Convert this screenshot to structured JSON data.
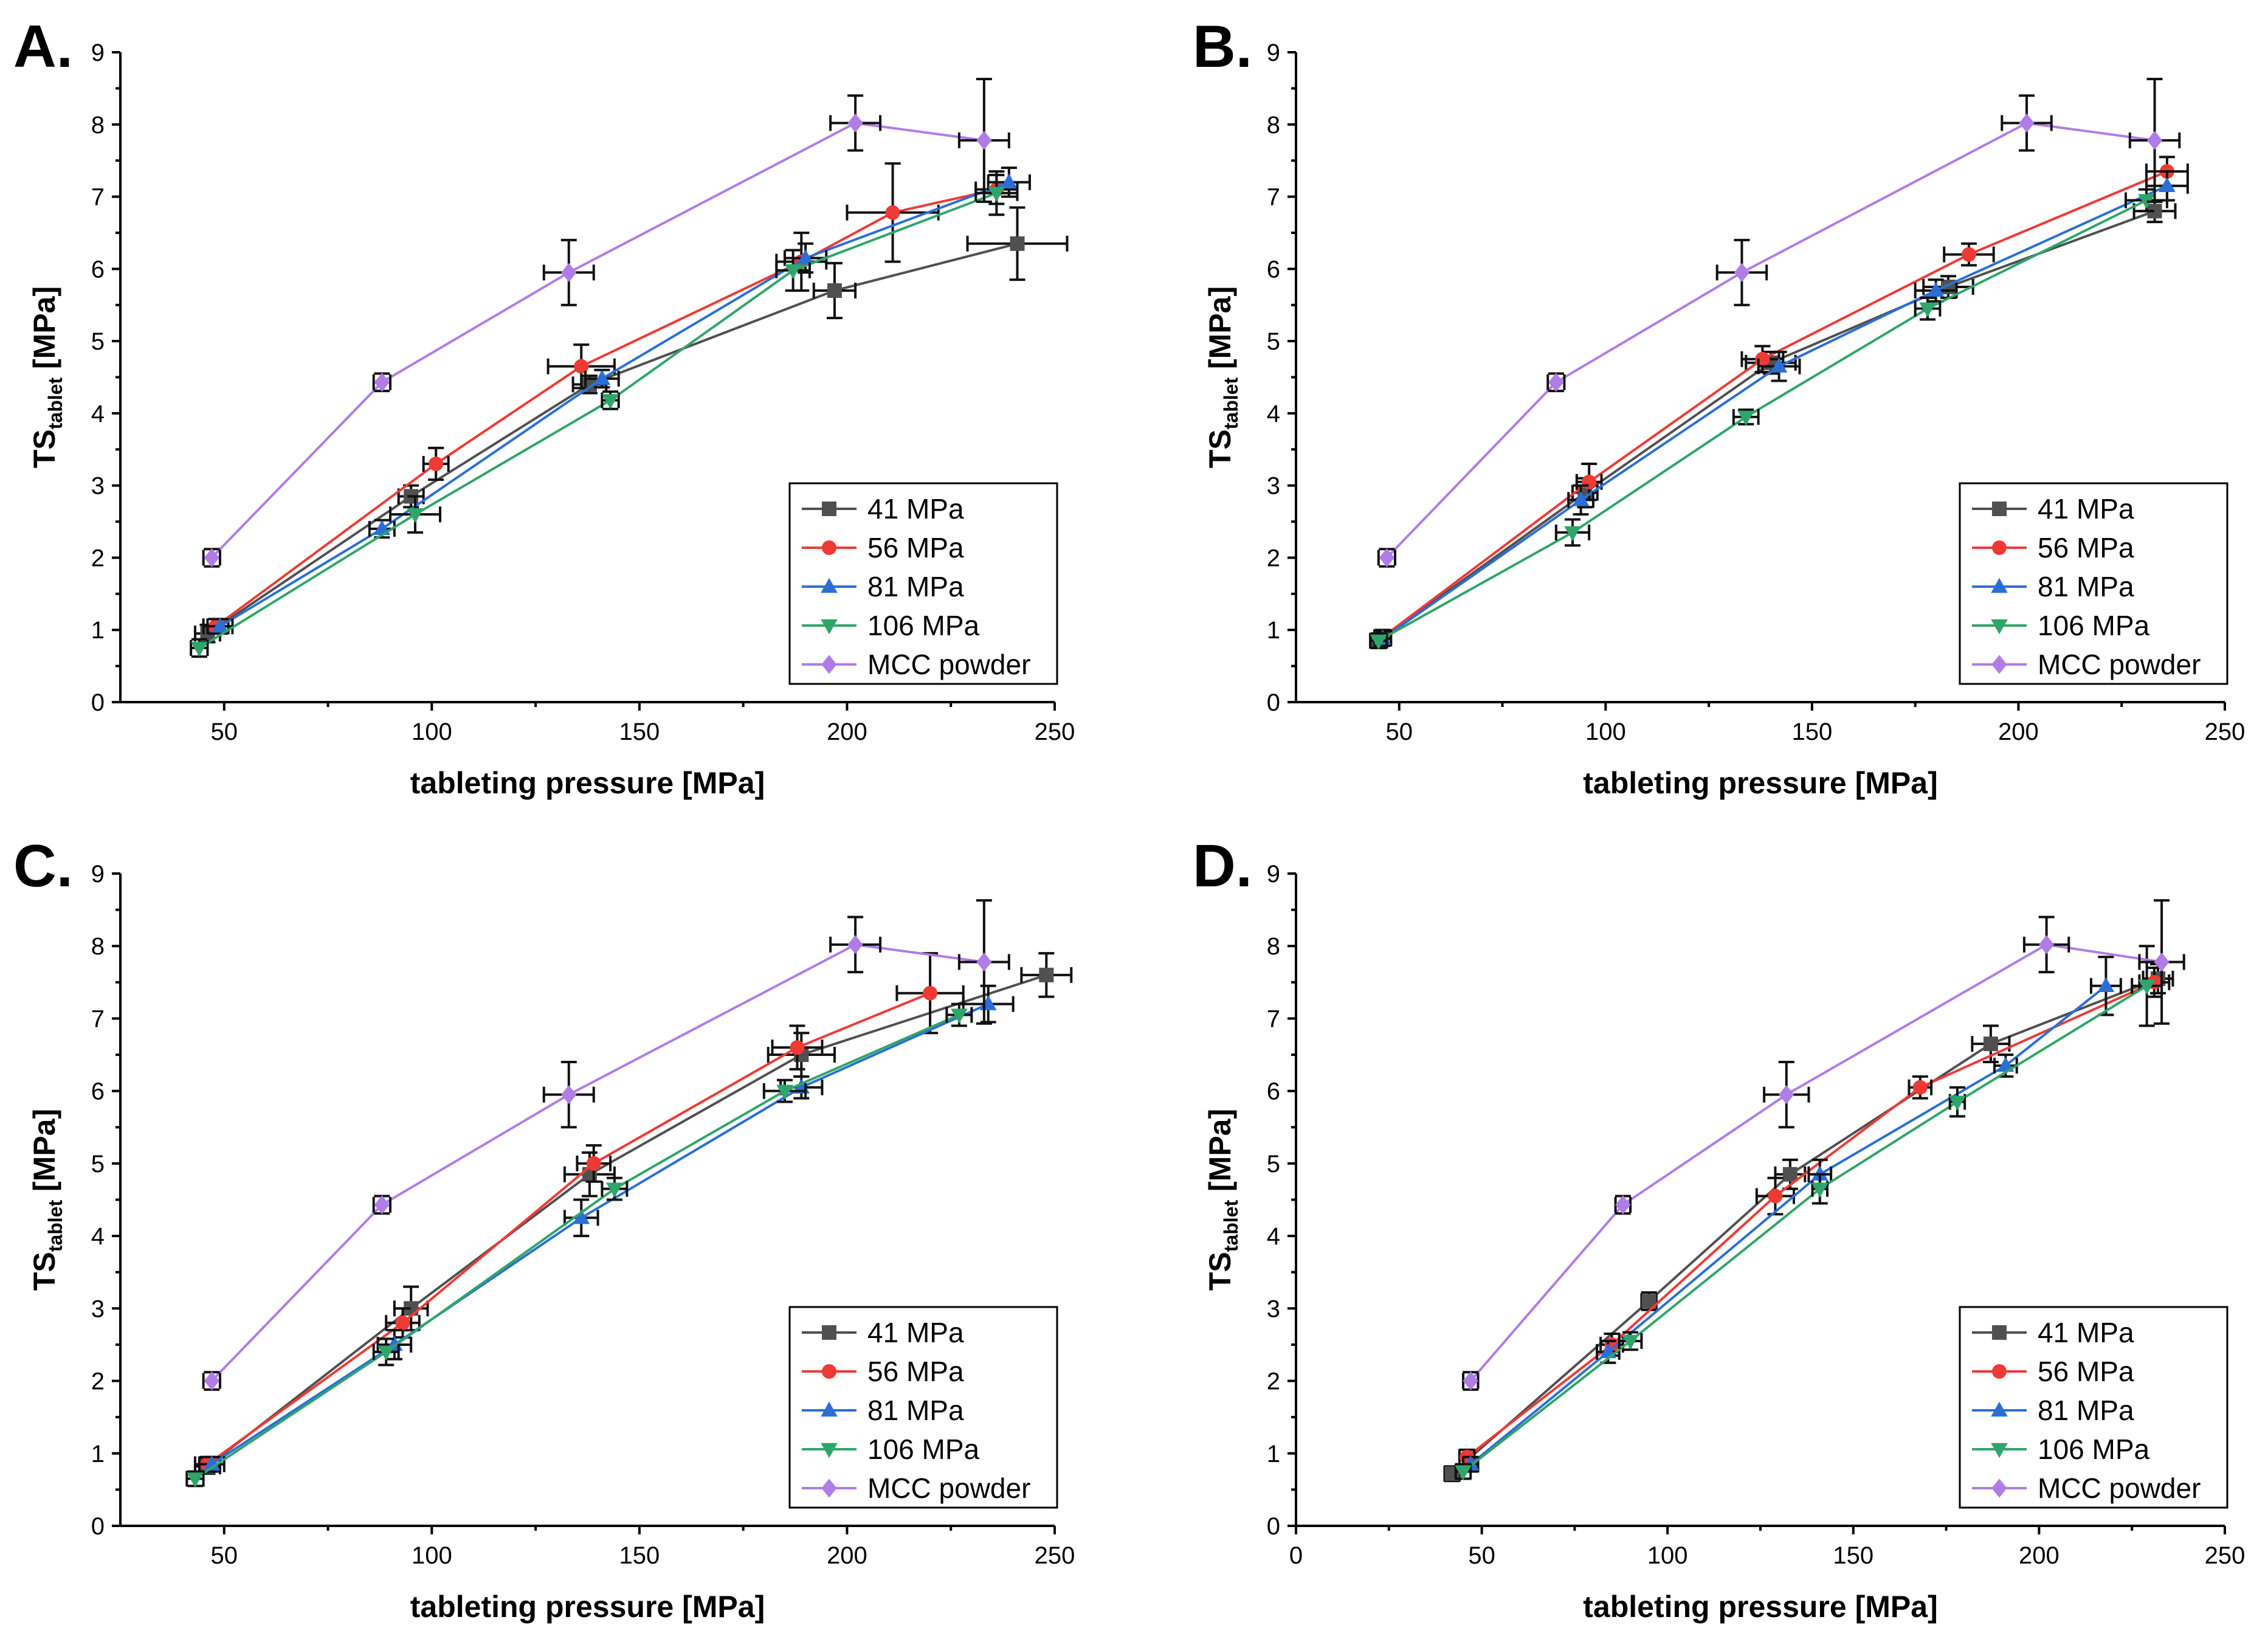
{
  "colors": {
    "s41": "#505050",
    "s56": "#ee3a35",
    "s81": "#2b6fd6",
    "s106": "#2fa56a",
    "mcc": "#b07ce6"
  },
  "legend_labels": [
    "41 MPa",
    "56 MPa",
    "81 MPa",
    "106 MPa",
    "MCC powder"
  ],
  "chart_data": [
    {
      "panel": "A.",
      "type": "line",
      "xlabel": "tableting pressure [MPa]",
      "ylabel_main": "TS",
      "ylabel_sub": "tablet",
      "ylabel_unit": " [MPa]",
      "xlim": [
        25,
        250
      ],
      "ylim": [
        0,
        9
      ],
      "xticks": [
        50,
        100,
        150,
        200,
        250
      ],
      "yticks": [
        0,
        1,
        2,
        3,
        4,
        5,
        6,
        7,
        8,
        9
      ],
      "legend_position": "bottom-right",
      "series": [
        {
          "name": "41 MPa",
          "marker": "square",
          "x": [
            46,
            95,
            138,
            197,
            241
          ],
          "y": [
            0.95,
            2.85,
            4.4,
            5.7,
            6.35
          ],
          "xerr": [
            3,
            3,
            4,
            5,
            12
          ],
          "yerr": [
            0.12,
            0.15,
            0.12,
            0.38,
            0.5
          ]
        },
        {
          "name": "56 MPa",
          "marker": "circle",
          "x": [
            48,
            101,
            136,
            189,
            211,
            236
          ],
          "y": [
            1.05,
            3.3,
            4.65,
            6.1,
            6.78,
            7.1
          ],
          "xerr": [
            3,
            3,
            8,
            6,
            11,
            5
          ],
          "yerr": [
            0.1,
            0.22,
            0.3,
            0.4,
            0.68,
            0.2
          ]
        },
        {
          "name": "81 MPa",
          "marker": "triangle-up",
          "x": [
            49,
            88,
            141,
            190,
            239
          ],
          "y": [
            1.05,
            2.4,
            4.48,
            6.15,
            7.2
          ],
          "xerr": [
            3,
            3,
            4,
            5,
            5
          ],
          "yerr": [
            0.1,
            0.12,
            0.12,
            0.2,
            0.2
          ]
        },
        {
          "name": "106 MPa",
          "marker": "triangle-down",
          "x": [
            44,
            96,
            143,
            187,
            236
          ],
          "y": [
            0.75,
            2.6,
            4.18,
            5.98,
            7.05
          ],
          "xerr": [
            2,
            6,
            2,
            4,
            5
          ],
          "yerr": [
            0.12,
            0.25,
            0.12,
            0.28,
            0.3
          ]
        },
        {
          "name": "MCC powder",
          "marker": "diamond",
          "x": [
            47,
            88,
            133,
            202,
            233
          ],
          "y": [
            2.0,
            4.43,
            5.95,
            8.02,
            7.78
          ],
          "xerr": [
            2,
            2,
            6,
            6,
            6
          ],
          "yerr": [
            0.12,
            0.12,
            0.45,
            0.38,
            0.85
          ]
        }
      ]
    },
    {
      "panel": "B.",
      "type": "line",
      "xlabel": "tableting pressure [MPa]",
      "ylabel_main": "TS",
      "ylabel_sub": "tablet",
      "ylabel_unit": " [MPa]",
      "xlim": [
        25,
        250
      ],
      "ylim": [
        0,
        9
      ],
      "xticks": [
        50,
        100,
        150,
        200,
        250
      ],
      "yticks": [
        0,
        1,
        2,
        3,
        4,
        5,
        6,
        7,
        8,
        9
      ],
      "legend_position": "bottom-right",
      "series": [
        {
          "name": "41 MPa",
          "marker": "square",
          "x": [
            45,
            95,
            140,
            183,
            233
          ],
          "y": [
            0.85,
            2.9,
            4.7,
            5.75,
            6.8
          ],
          "xerr": [
            2,
            3,
            6,
            6,
            5
          ],
          "yerr": [
            0.1,
            0.2,
            0.15,
            0.15,
            0.15
          ]
        },
        {
          "name": "56 MPa",
          "marker": "circle",
          "x": [
            46,
            96,
            138,
            188,
            236
          ],
          "y": [
            0.9,
            3.05,
            4.75,
            6.2,
            7.35
          ],
          "xerr": [
            2,
            3,
            5,
            6,
            5
          ],
          "yerr": [
            0.1,
            0.25,
            0.18,
            0.15,
            0.2
          ]
        },
        {
          "name": "81 MPa",
          "marker": "triangle-up",
          "x": [
            46,
            94,
            142,
            180,
            236
          ],
          "y": [
            0.88,
            2.8,
            4.65,
            5.7,
            7.15
          ],
          "xerr": [
            2,
            3,
            5,
            5,
            5
          ],
          "yerr": [
            0.1,
            0.2,
            0.2,
            0.15,
            0.2
          ]
        },
        {
          "name": "106 MPa",
          "marker": "triangle-down",
          "x": [
            45,
            92,
            134,
            178,
            231
          ],
          "y": [
            0.85,
            2.35,
            3.95,
            5.45,
            6.95
          ],
          "xerr": [
            2,
            4,
            3,
            3,
            5
          ],
          "yerr": [
            0.1,
            0.18,
            0.1,
            0.15,
            0.15
          ]
        },
        {
          "name": "MCC powder",
          "marker": "diamond",
          "x": [
            47,
            88,
            133,
            202,
            233
          ],
          "y": [
            2.0,
            4.43,
            5.95,
            8.02,
            7.78
          ],
          "xerr": [
            2,
            2,
            6,
            6,
            6
          ],
          "yerr": [
            0.12,
            0.12,
            0.45,
            0.38,
            0.85
          ]
        }
      ]
    },
    {
      "panel": "C.",
      "type": "line",
      "xlabel": "tableting pressure [MPa]",
      "ylabel_main": "TS",
      "ylabel_sub": "tablet",
      "ylabel_unit": " [MPa]",
      "xlim": [
        25,
        250
      ],
      "ylim": [
        0,
        9
      ],
      "xticks": [
        50,
        100,
        150,
        200,
        250
      ],
      "yticks": [
        0,
        1,
        2,
        3,
        4,
        5,
        6,
        7,
        8,
        9
      ],
      "legend_position": "bottom-right",
      "series": [
        {
          "name": "41 MPa",
          "marker": "square",
          "x": [
            46,
            95,
            138,
            189,
            248
          ],
          "y": [
            0.82,
            3.0,
            4.85,
            6.5,
            7.6
          ],
          "xerr": [
            3,
            4,
            6,
            8,
            6
          ],
          "yerr": [
            0.1,
            0.3,
            0.3,
            0.3,
            0.3
          ]
        },
        {
          "name": "56 MPa",
          "marker": "circle",
          "x": [
            46,
            93,
            139,
            188,
            220
          ],
          "y": [
            0.85,
            2.8,
            5.0,
            6.6,
            7.35
          ],
          "xerr": [
            3,
            4,
            4,
            6,
            8
          ],
          "yerr": [
            0.1,
            0.2,
            0.25,
            0.3,
            0.55
          ]
        },
        {
          "name": "81 MPa",
          "marker": "triangle-up",
          "x": [
            47,
            91,
            136,
            189,
            234
          ],
          "y": [
            0.85,
            2.5,
            4.25,
            6.05,
            7.2
          ],
          "xerr": [
            3,
            4,
            4,
            5,
            6
          ],
          "yerr": [
            0.1,
            0.2,
            0.25,
            0.15,
            0.25
          ]
        },
        {
          "name": "106 MPa",
          "marker": "triangle-down",
          "x": [
            43,
            89,
            144,
            185,
            227
          ],
          "y": [
            0.65,
            2.4,
            4.65,
            6.0,
            7.05
          ],
          "xerr": [
            2,
            3,
            3,
            5,
            3
          ],
          "yerr": [
            0.1,
            0.18,
            0.15,
            0.15,
            0.15
          ]
        },
        {
          "name": "MCC powder",
          "marker": "diamond",
          "x": [
            47,
            88,
            133,
            202,
            233
          ],
          "y": [
            2.0,
            4.43,
            5.95,
            8.02,
            7.78
          ],
          "xerr": [
            2,
            2,
            6,
            6,
            6
          ],
          "yerr": [
            0.12,
            0.12,
            0.45,
            0.38,
            0.85
          ]
        }
      ]
    },
    {
      "panel": "D.",
      "type": "line",
      "xlabel": "tableting pressure [MPa]",
      "ylabel_main": "TS",
      "ylabel_sub": "tablet",
      "ylabel_unit": " [MPa]",
      "xlim": [
        0,
        250
      ],
      "ylim": [
        0,
        9
      ],
      "xticks": [
        0,
        50,
        100,
        150,
        200,
        250
      ],
      "yticks": [
        0,
        1,
        2,
        3,
        4,
        5,
        6,
        7,
        8,
        9
      ],
      "legend_position": "bottom-right",
      "series": [
        {
          "name": "41 MPa",
          "marker": "square",
          "x": [
            42,
            95,
            133,
            187,
            232
          ],
          "y": [
            0.72,
            3.1,
            4.85,
            6.65,
            7.55
          ],
          "xerr": [
            2,
            2,
            4,
            5,
            4
          ],
          "yerr": [
            0.1,
            0.12,
            0.2,
            0.25,
            0.2
          ]
        },
        {
          "name": "56 MPa",
          "marker": "circle",
          "x": [
            46,
            85,
            129,
            168,
            231
          ],
          "y": [
            0.95,
            2.5,
            4.55,
            6.05,
            7.5
          ],
          "xerr": [
            2,
            3,
            5,
            3,
            4
          ],
          "yerr": [
            0.1,
            0.15,
            0.25,
            0.15,
            0.2
          ]
        },
        {
          "name": "81 MPa",
          "marker": "triangle-up",
          "x": [
            47,
            84,
            141,
            191,
            218
          ],
          "y": [
            0.85,
            2.4,
            4.85,
            6.35,
            7.45
          ],
          "xerr": [
            2,
            3,
            3,
            3,
            4
          ],
          "yerr": [
            0.1,
            0.15,
            0.2,
            0.15,
            0.4
          ]
        },
        {
          "name": "106 MPa",
          "marker": "triangle-down",
          "x": [
            45,
            90,
            141,
            178,
            229
          ],
          "y": [
            0.75,
            2.55,
            4.65,
            5.85,
            7.45
          ],
          "xerr": [
            2,
            3,
            2,
            2,
            4
          ],
          "yerr": [
            0.1,
            0.12,
            0.2,
            0.2,
            0.55
          ]
        },
        {
          "name": "MCC powder",
          "marker": "diamond",
          "x": [
            47,
            88,
            132,
            202,
            233
          ],
          "y": [
            2.0,
            4.43,
            5.95,
            8.02,
            7.78
          ],
          "xerr": [
            2,
            2,
            6,
            6,
            6
          ],
          "yerr": [
            0.12,
            0.12,
            0.45,
            0.38,
            0.85
          ]
        }
      ]
    }
  ]
}
